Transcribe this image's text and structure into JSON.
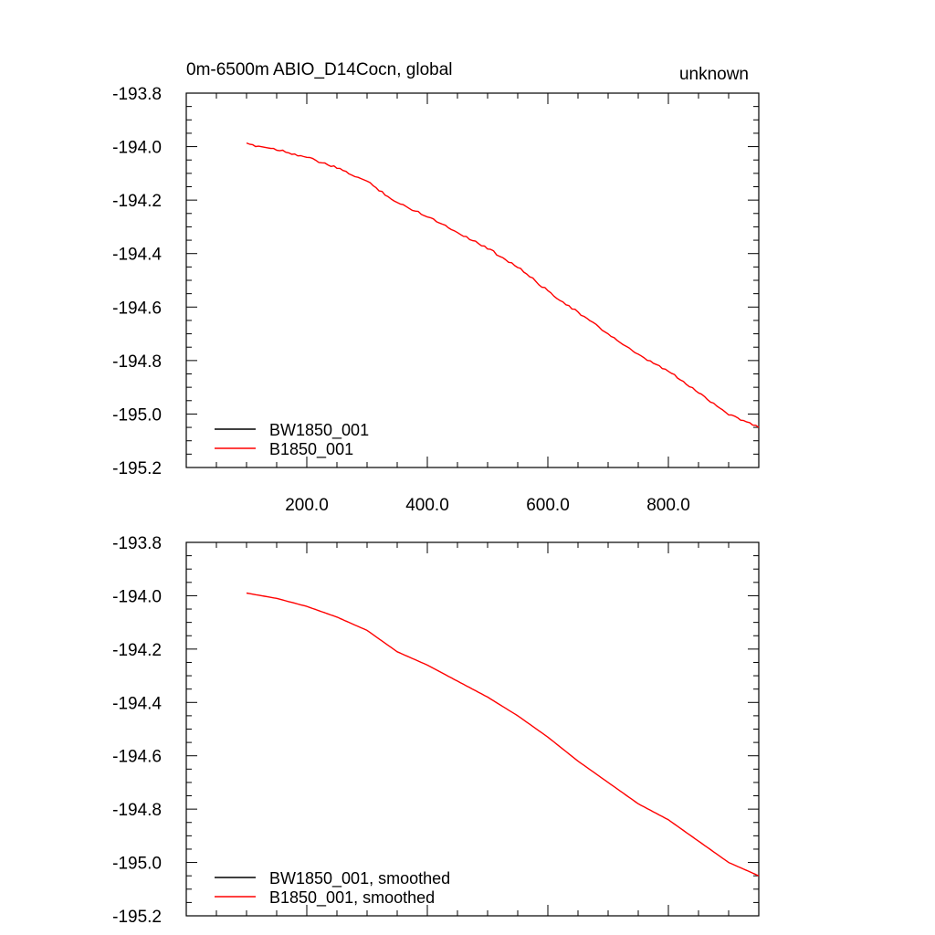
{
  "title_left": "0m-6500m ABIO_D14Cocn, global",
  "title_right": "unknown",
  "colors": {
    "series_a": "#000000",
    "series_b": "#ff0000",
    "frame": "#000000"
  },
  "chart_data": [
    {
      "type": "line",
      "xlim": [
        0,
        950
      ],
      "ylim": [
        -195.2,
        -193.8
      ],
      "x_tick_labels": [
        "200.0",
        "400.0",
        "600.0",
        "800.0"
      ],
      "x_tick_values": [
        200,
        400,
        600,
        800
      ],
      "y_tick_labels": [
        "-193.8",
        "-194.0",
        "-194.2",
        "-194.4",
        "-194.6",
        "-194.8",
        "-195.0",
        "-195.2"
      ],
      "y_tick_values": [
        -193.8,
        -194.0,
        -194.2,
        -194.4,
        -194.6,
        -194.8,
        -195.0,
        -195.2
      ],
      "legend_position": "bottom-left",
      "series": [
        {
          "name": "BW1850_001",
          "color": "#000000",
          "x": [],
          "y": []
        },
        {
          "name": "B1850_001",
          "color": "#ff0000",
          "x": [
            100,
            150,
            200,
            250,
            300,
            350,
            400,
            450,
            500,
            550,
            600,
            650,
            700,
            750,
            800,
            850,
            900,
            950
          ],
          "y": [
            -193.99,
            -194.01,
            -194.04,
            -194.08,
            -194.13,
            -194.21,
            -194.26,
            -194.32,
            -194.38,
            -194.45,
            -194.54,
            -194.62,
            -194.7,
            -194.78,
            -194.84,
            -194.92,
            -195.0,
            -195.05
          ]
        }
      ]
    },
    {
      "type": "line",
      "xlim": [
        0,
        950
      ],
      "ylim": [
        -195.2,
        -193.8
      ],
      "x_tick_labels": [],
      "x_tick_values": [
        200,
        400,
        600,
        800
      ],
      "y_tick_labels": [
        "-193.8",
        "-194.0",
        "-194.2",
        "-194.4",
        "-194.6",
        "-194.8",
        "-195.0",
        "-195.2"
      ],
      "y_tick_values": [
        -193.8,
        -194.0,
        -194.2,
        -194.4,
        -194.6,
        -194.8,
        -195.0,
        -195.2
      ],
      "legend_position": "bottom-left",
      "series": [
        {
          "name": "BW1850_001, smoothed",
          "color": "#000000",
          "x": [],
          "y": []
        },
        {
          "name": "B1850_001, smoothed",
          "color": "#ff0000",
          "x": [
            100,
            150,
            200,
            250,
            300,
            350,
            400,
            450,
            500,
            550,
            600,
            650,
            700,
            750,
            800,
            850,
            900,
            950
          ],
          "y": [
            -193.99,
            -194.01,
            -194.04,
            -194.08,
            -194.13,
            -194.21,
            -194.26,
            -194.32,
            -194.38,
            -194.45,
            -194.53,
            -194.62,
            -194.7,
            -194.78,
            -194.84,
            -194.92,
            -195.0,
            -195.05
          ]
        }
      ]
    }
  ]
}
